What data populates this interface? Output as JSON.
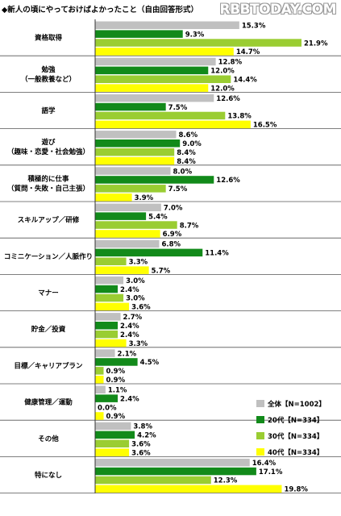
{
  "page_title": "◆新人の頃にやっておけばよかったこと（自由回答形式）",
  "watermark": "RBBTODAY.COM",
  "colors": {
    "all": "#c0c0c0",
    "s20": "#128a1a",
    "s30": "#9acd32",
    "s40": "#ffff00"
  },
  "chart_data": {
    "type": "bar",
    "orientation": "horizontal",
    "title": "◆新人の頃にやっておけばよかったこと（自由回答形式）",
    "value_suffix": "%",
    "categories": [
      [
        "資格取得"
      ],
      [
        "勉強",
        "（一般教養など）"
      ],
      [
        "語学"
      ],
      [
        "遊び",
        "（趣味・恋愛・社会勉強）"
      ],
      [
        "積極的に仕事",
        "（質問・失敗・自己主張）"
      ],
      [
        "スキルアップ／研修"
      ],
      [
        "コミニケーション／人脈作り"
      ],
      [
        "マナー"
      ],
      [
        "貯金／投資"
      ],
      [
        "目標／キャリアプラン"
      ],
      [
        "健康管理／運動"
      ],
      [
        "その他"
      ],
      [
        "特になし"
      ]
    ],
    "series": [
      {
        "name": "全体【N=1002】",
        "values": [
          15.3,
          12.8,
          12.6,
          8.6,
          8.0,
          7.0,
          6.8,
          3.0,
          2.7,
          2.1,
          1.1,
          3.8,
          16.4
        ]
      },
      {
        "name": "20代【N=334】",
        "values": [
          9.3,
          12.0,
          7.5,
          9.0,
          12.6,
          5.4,
          11.4,
          2.4,
          2.4,
          4.5,
          2.4,
          4.2,
          17.1
        ]
      },
      {
        "name": "30代【N=334】",
        "values": [
          21.9,
          14.4,
          13.8,
          8.4,
          7.5,
          8.7,
          3.3,
          3.0,
          2.4,
          0.9,
          0.0,
          3.6,
          12.3
        ]
      },
      {
        "name": "40代【N=334】",
        "values": [
          14.7,
          12.0,
          16.5,
          8.4,
          3.9,
          6.9,
          5.7,
          3.6,
          3.3,
          0.9,
          0.9,
          3.6,
          19.8
        ]
      }
    ],
    "legend": {
      "placement": "bottom-right"
    },
    "grid": false
  }
}
